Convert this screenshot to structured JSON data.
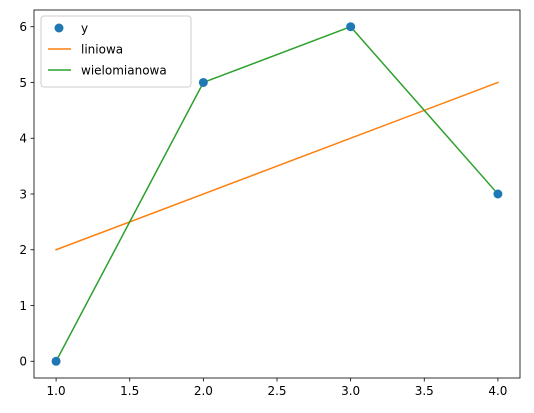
{
  "chart_data": {
    "type": "line",
    "title": "",
    "xlabel": "",
    "ylabel": "",
    "xlim": [
      0.85,
      4.15
    ],
    "ylim": [
      -0.3,
      6.3
    ],
    "xticks": [
      1.0,
      1.5,
      2.0,
      2.5,
      3.0,
      3.5,
      4.0
    ],
    "xtick_labels": [
      "1.0",
      "1.5",
      "2.0",
      "2.5",
      "3.0",
      "3.5",
      "4.0"
    ],
    "yticks": [
      0,
      1,
      2,
      3,
      4,
      5,
      6
    ],
    "ytick_labels": [
      "0",
      "1",
      "2",
      "3",
      "4",
      "5",
      "6"
    ],
    "grid": false,
    "legend_position": "top-left",
    "series": [
      {
        "name": "y",
        "style": "markers",
        "color": "#1f77b4",
        "x": [
          1,
          2,
          3,
          4
        ],
        "y": [
          0,
          5,
          6,
          3
        ]
      },
      {
        "name": "liniowa",
        "style": "line",
        "color": "#ff7f0e",
        "x": [
          1,
          4
        ],
        "y": [
          2,
          5
        ]
      },
      {
        "name": "wielomianowa",
        "style": "line",
        "color": "#2ca02c",
        "x": [
          1,
          2,
          3,
          4
        ],
        "y": [
          0,
          5,
          6,
          3
        ]
      }
    ]
  }
}
